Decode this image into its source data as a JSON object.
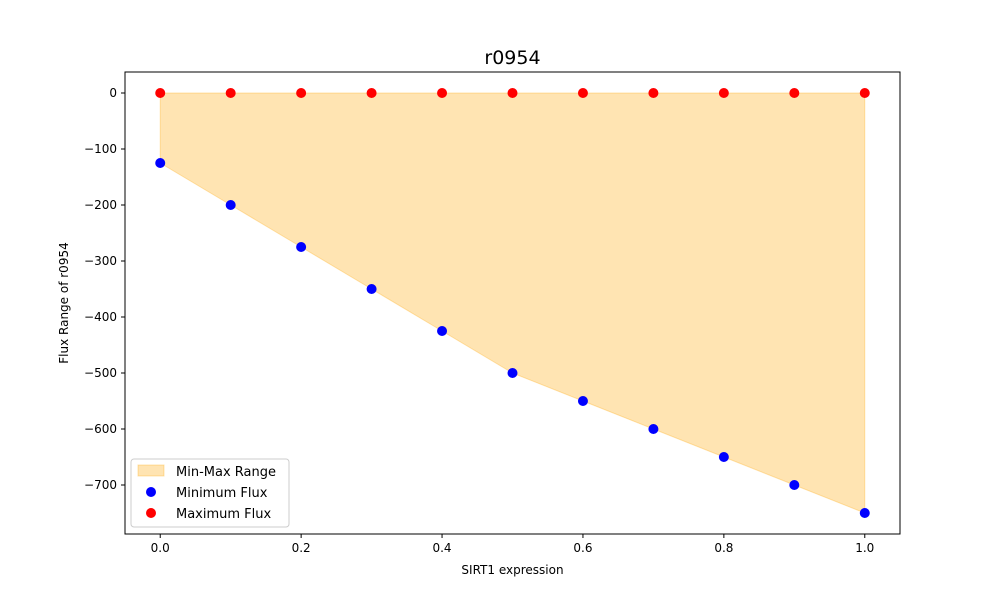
{
  "chart_data": {
    "type": "scatter",
    "title": "r0954",
    "xlabel": "SIRT1 expression",
    "ylabel": "Flux Range of r0954",
    "xlim": [
      -0.05,
      1.05
    ],
    "ylim": [
      -787.5,
      37.5
    ],
    "x_ticks": [
      0.0,
      0.2,
      0.4,
      0.6,
      0.8,
      1.0
    ],
    "x_tick_labels": [
      "0.0",
      "0.2",
      "0.4",
      "0.6",
      "0.8",
      "1.0"
    ],
    "y_ticks": [
      0,
      -100,
      -200,
      -300,
      -400,
      -500,
      -600,
      -700
    ],
    "y_tick_labels": [
      "0",
      "−100",
      "−200",
      "−300",
      "−400",
      "−500",
      "−600",
      "−700"
    ],
    "x": [
      0.0,
      0.1,
      0.2,
      0.3,
      0.4,
      0.5,
      0.6,
      0.7,
      0.8,
      0.9,
      1.0
    ],
    "series": [
      {
        "name": "Minimum Flux",
        "color": "#0000ff",
        "values": [
          -125,
          -200,
          -275,
          -350,
          -425,
          -500,
          -550,
          -600,
          -650,
          -700,
          -750
        ]
      },
      {
        "name": "Maximum Flux",
        "color": "#ff0000",
        "values": [
          0,
          0,
          0,
          0,
          0,
          0,
          0,
          0,
          0,
          0,
          0
        ]
      }
    ],
    "fill": {
      "name": "Min-Max Range",
      "color": "#ffa500",
      "opacity": 0.3
    },
    "legend_position": "lower-left",
    "grid": false
  }
}
